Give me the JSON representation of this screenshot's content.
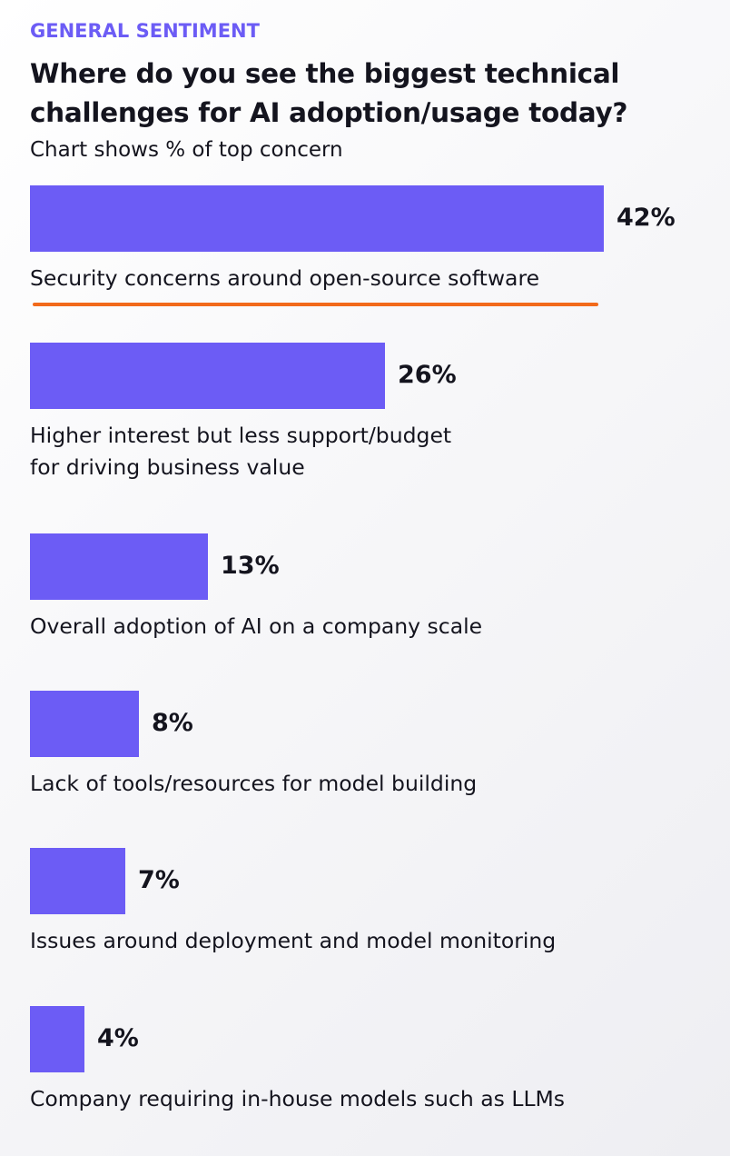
{
  "header": {
    "eyebrow": "GENERAL SENTIMENT",
    "title": "Where do you see the biggest technical challenges for AI adoption/usage today?",
    "subtitle": "Chart shows % of top concern"
  },
  "colors": {
    "accent": "#6c5cf5",
    "bar": "#6c5cf5",
    "highlight_underline": "#f26a1b",
    "text": "#14141e"
  },
  "chart_data": {
    "type": "bar",
    "orientation": "horizontal",
    "categories": [
      "Security concerns around open-source software",
      "Higher interest but less support/budget\nfor driving business value",
      "Overall adoption of AI on a company scale",
      "Lack of tools/resources for model building",
      "Issues around deployment and model monitoring",
      "Company requiring in-house models such as LLMs"
    ],
    "values": [
      42,
      26,
      13,
      8,
      7,
      4
    ],
    "value_labels": [
      "42%",
      "26%",
      "13%",
      "8%",
      "7%",
      "4%"
    ],
    "unit": "%",
    "highlighted_category_index": 0,
    "title": "Where do you see the biggest technical challenges for AI adoption/usage today?",
    "subtitle": "Chart shows % of top concern",
    "grid": false,
    "legend": "none"
  }
}
